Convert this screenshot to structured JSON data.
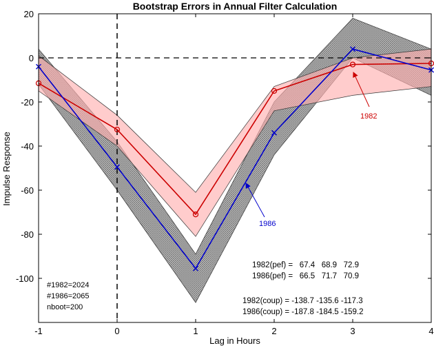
{
  "chart_data": {
    "type": "line",
    "title": "Bootstrap Errors in Annual Filter Calculation",
    "xlabel": "Lag in Hours",
    "ylabel": "Impulse Response",
    "xlim": [
      -1,
      4
    ],
    "ylim": [
      -120,
      20
    ],
    "x_ticks": [
      "-1",
      "0",
      "1",
      "2",
      "3",
      "4"
    ],
    "y_ticks": [
      "20",
      "0",
      "-20",
      "-40",
      "-60",
      "-80",
      "-100"
    ],
    "x": [
      -1,
      0,
      1,
      2,
      3,
      4
    ],
    "series": [
      {
        "name": "1982",
        "marker": "o",
        "color": "#cc0000",
        "band_color": "#ffb0b0",
        "values": [
          -11.5,
          -32.5,
          -71,
          -15,
          -3,
          -2.5
        ],
        "upper": [
          1,
          -26,
          -61,
          -13,
          0,
          4
        ],
        "lower": [
          -15,
          -40,
          -81,
          -24,
          -17,
          -13
        ]
      },
      {
        "name": "1986",
        "marker": "x",
        "color": "#0000cc",
        "band_color": "#aaaaaa",
        "values": [
          -4,
          -49.5,
          -95.5,
          -34,
          4,
          -5.5
        ],
        "upper": [
          4,
          -38,
          -89,
          -20,
          18,
          4
        ],
        "lower": [
          -12,
          -60,
          -111,
          -44,
          0,
          -17
        ]
      }
    ],
    "annotations": {
      "label_1982": "1982",
      "label_1986": "1986",
      "counts": [
        "#1982=2024",
        "#1986=2065",
        "nboot=200"
      ],
      "stats": [
        "1982(pef) =   67.4   68.9   72.9",
        "1986(pef) =   66.5   71.7   70.9",
        "1982(coup) = -138.7 -135.6 -117.3",
        "1986(coup) = -187.8 -184.5 -159.2"
      ]
    },
    "reference_lines": {
      "horizontal_y": 0,
      "vertical_x": 0
    },
    "grid": false,
    "legend": "none"
  }
}
